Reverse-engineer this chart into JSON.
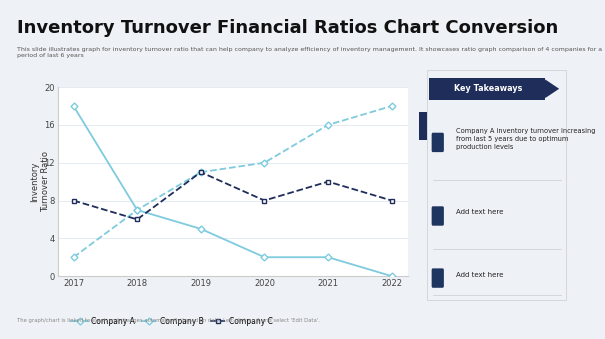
{
  "title": "Inventory Turnover Financial Ratios Chart Conversion",
  "subtitle": "This slide illustrates graph for inventory turnover ratio that can help company to analyze efficiency of inventory management. It showcases ratio graph comparison of 4 companies for a period of last 6 years",
  "footer": "The graph/chart is linked to excel, and changes automatically based on data. Left-click on it and select 'Edit Data'.",
  "ylabel": "Inventory\nTurnover Ratio",
  "years": [
    2017,
    2018,
    2019,
    2020,
    2021,
    2022
  ],
  "company_a": [
    18,
    7,
    5,
    2,
    2,
    0
  ],
  "company_b": [
    2,
    7,
    11,
    12,
    16,
    18
  ],
  "company_c": [
    8,
    6,
    11,
    8,
    10,
    8
  ],
  "color_a": "#7ecbde",
  "color_b": "#7ecbde",
  "color_c": "#1e2d5a",
  "ylim": [
    0,
    20
  ],
  "yticks": [
    0,
    4,
    8,
    12,
    16,
    20
  ],
  "key_takeaways_bg": "#1e2d5a",
  "key_takeaways_text": "Key Takeaways",
  "takeaway1": "Company A inventory turnover increasing\nfrom last 5 years due to optimum\nproduction levels",
  "takeaway2": "Add text here",
  "takeaway3": "Add text here",
  "legend_labels": [
    "Company A",
    "Company B",
    "Company C"
  ],
  "title_fontsize": 13,
  "subtitle_fontsize": 4.5,
  "axis_fontsize": 6,
  "legend_fontsize": 5.5,
  "grid_color": "#e0e8f0",
  "chart_bg": "#f0f4f8",
  "white": "#ffffff",
  "light_border": "#cccccc"
}
